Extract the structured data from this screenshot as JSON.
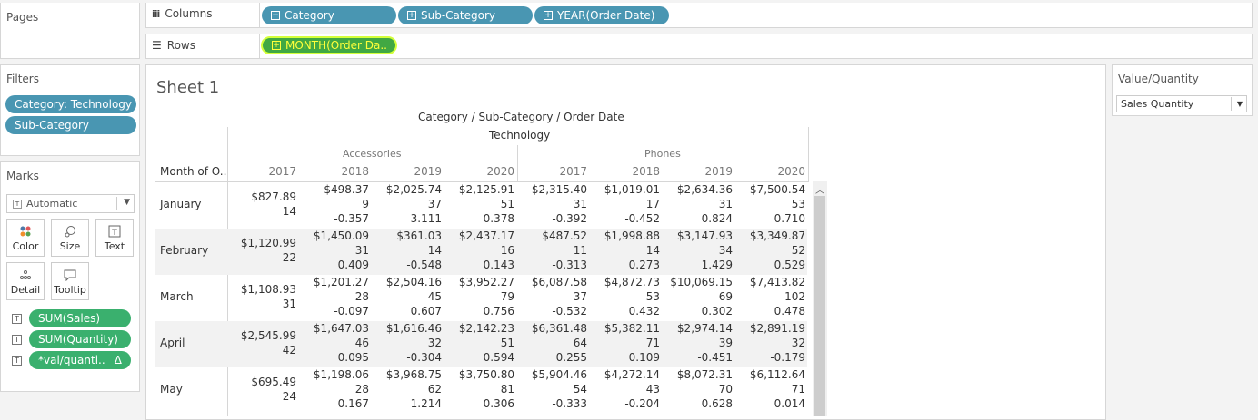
{
  "pages": {
    "title": "Pages"
  },
  "columns_shelf": {
    "label": "Columns",
    "pills": [
      "Category",
      "Sub-Category",
      "YEAR(Order Date)"
    ]
  },
  "rows_shelf": {
    "label": "Rows",
    "pills": [
      "MONTH(Order Da.."
    ]
  },
  "filters": {
    "title": "Filters",
    "items": [
      "Category: Technology",
      "Sub-Category"
    ]
  },
  "marks": {
    "title": "Marks",
    "type": "Automatic",
    "cards": [
      "Color",
      "Size",
      "Text",
      "Detail",
      "Tooltip"
    ],
    "fields": [
      "SUM(Sales)",
      "SUM(Quantity)",
      "*val/quanti..",
      "Δ"
    ]
  },
  "parameter": {
    "title": "Value/Quantity",
    "selected": "Sales Quantity"
  },
  "sheet": {
    "title": "Sheet 1",
    "header_path": "Category / Sub-Category / Order Date",
    "category": "Technology",
    "subcategories": [
      "Accessories",
      "Phones"
    ],
    "row_header": "Month of O..",
    "years": [
      "2017",
      "2018",
      "2019",
      "2020",
      "2017",
      "2018",
      "2019",
      "2020"
    ],
    "rows": [
      {
        "month": "January",
        "cells": [
          [
            "$827.89",
            "14",
            ""
          ],
          [
            "$498.37",
            "9",
            "-0.357"
          ],
          [
            "$2,025.74",
            "37",
            "3.111"
          ],
          [
            "$2,125.91",
            "51",
            "0.378"
          ],
          [
            "$2,315.40",
            "31",
            "-0.392"
          ],
          [
            "$1,019.01",
            "17",
            "-0.452"
          ],
          [
            "$2,634.36",
            "31",
            "0.824"
          ],
          [
            "$7,500.54",
            "53",
            "0.710"
          ]
        ]
      },
      {
        "month": "February",
        "cells": [
          [
            "$1,120.99",
            "22",
            ""
          ],
          [
            "$1,450.09",
            "31",
            "0.409"
          ],
          [
            "$361.03",
            "14",
            "-0.548"
          ],
          [
            "$2,437.17",
            "16",
            "0.143"
          ],
          [
            "$487.52",
            "11",
            "-0.313"
          ],
          [
            "$1,998.88",
            "14",
            "0.273"
          ],
          [
            "$3,147.93",
            "34",
            "1.429"
          ],
          [
            "$3,349.87",
            "52",
            "0.529"
          ]
        ]
      },
      {
        "month": "March",
        "cells": [
          [
            "$1,108.93",
            "31",
            ""
          ],
          [
            "$1,201.27",
            "28",
            "-0.097"
          ],
          [
            "$2,504.16",
            "45",
            "0.607"
          ],
          [
            "$3,952.27",
            "79",
            "0.756"
          ],
          [
            "$6,087.58",
            "37",
            "-0.532"
          ],
          [
            "$4,872.73",
            "53",
            "0.432"
          ],
          [
            "$10,069.15",
            "69",
            "0.302"
          ],
          [
            "$7,413.82",
            "102",
            "0.478"
          ]
        ]
      },
      {
        "month": "April",
        "cells": [
          [
            "$2,545.99",
            "42",
            ""
          ],
          [
            "$1,647.03",
            "46",
            "0.095"
          ],
          [
            "$1,616.46",
            "32",
            "-0.304"
          ],
          [
            "$2,142.23",
            "51",
            "0.594"
          ],
          [
            "$6,361.48",
            "64",
            "0.255"
          ],
          [
            "$5,382.11",
            "71",
            "0.109"
          ],
          [
            "$2,974.14",
            "39",
            "-0.451"
          ],
          [
            "$2,891.19",
            "32",
            "-0.179"
          ]
        ]
      },
      {
        "month": "May",
        "cells": [
          [
            "$695.49",
            "24",
            ""
          ],
          [
            "$1,198.06",
            "28",
            "0.167"
          ],
          [
            "$3,968.75",
            "62",
            "1.214"
          ],
          [
            "$3,750.80",
            "81",
            "0.306"
          ],
          [
            "$5,904.46",
            "54",
            "-0.333"
          ],
          [
            "$4,272.14",
            "43",
            "-0.204"
          ],
          [
            "$8,072.31",
            "70",
            "0.628"
          ],
          [
            "$6,112.64",
            "71",
            "0.014"
          ]
        ]
      }
    ]
  },
  "icons": {
    "columns": "columns-icon",
    "rows": "rows-icon",
    "scroll_up": "chevron-up-icon",
    "dropdown": "chevron-down-icon"
  }
}
